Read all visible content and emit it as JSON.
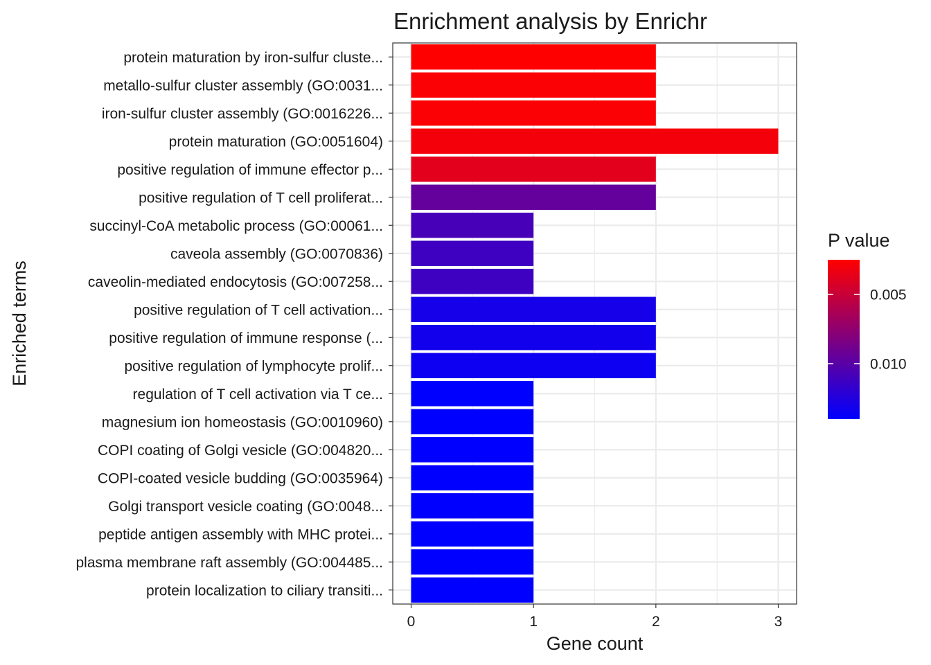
{
  "chart_data": {
    "type": "bar",
    "orientation": "horizontal",
    "title": "Enrichment analysis by Enrichr",
    "xlabel": "Gene count",
    "ylabel": "Enriched terms",
    "xlim": [
      -0.15,
      3.15
    ],
    "xticks": [
      0,
      1,
      2,
      3
    ],
    "grid": true,
    "categories": [
      "protein maturation by iron-sulfur cluste...",
      "metallo-sulfur cluster assembly (GO:0031...",
      "iron-sulfur cluster assembly (GO:0016226...",
      "protein maturation (GO:0051604)",
      "positive regulation of immune effector p...",
      "positive regulation of T cell proliferat...",
      "succinyl-CoA metabolic process (GO:00061...",
      "caveola assembly (GO:0070836)",
      "caveolin-mediated endocytosis (GO:007258...",
      "positive regulation of T cell activation...",
      "positive regulation of immune response (...",
      "positive regulation of lymphocyte prolif...",
      "regulation of T cell activation via T ce...",
      "magnesium ion homeostasis (GO:0010960)",
      "COPI coating of Golgi vesicle (GO:004820...",
      "COPI-coated vesicle budding (GO:0035964)",
      "Golgi transport vesicle coating (GO:0048...",
      "peptide antigen assembly with MHC protei...",
      "plasma membrane raft assembly (GO:004485...",
      "protein localization to ciliary transiti..."
    ],
    "values": [
      2,
      2,
      2,
      3,
      2,
      2,
      1,
      1,
      1,
      2,
      2,
      2,
      1,
      1,
      1,
      1,
      1,
      1,
      1,
      1
    ],
    "p_values": [
      0.0025,
      0.0027,
      0.0027,
      0.003,
      0.0038,
      0.0095,
      0.0108,
      0.0112,
      0.0112,
      0.013,
      0.0132,
      0.0134,
      0.014,
      0.014,
      0.014,
      0.014,
      0.014,
      0.014,
      0.014,
      0.014
    ],
    "legend": {
      "title": "P value",
      "position": "right",
      "low_color": "#0000ff",
      "high_color": "#ff0000",
      "range": [
        0.0025,
        0.014
      ],
      "ticks": [
        0.005,
        0.01
      ],
      "tick_labels": [
        "0.005",
        "0.010"
      ]
    }
  }
}
